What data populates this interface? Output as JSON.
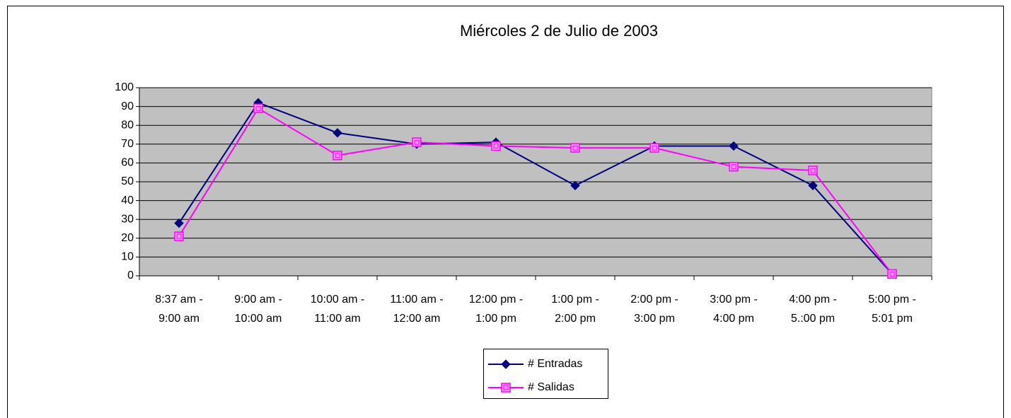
{
  "chart_data": {
    "type": "line",
    "title": "Miércoles 2 de Julio de 2003",
    "categories": [
      [
        "8:37 am -",
        "9:00 am"
      ],
      [
        "9:00 am -",
        "10:00 am"
      ],
      [
        "10:00 am -",
        "11:00 am"
      ],
      [
        "11:00 am -",
        "12:00 am"
      ],
      [
        "12:00 pm -",
        "1:00 pm"
      ],
      [
        "1:00 pm -",
        "2:00 pm"
      ],
      [
        "2:00 pm -",
        "3:00 pm"
      ],
      [
        "3:00 pm -",
        "4:00 pm"
      ],
      [
        "4:00 pm -",
        "5.:00 pm"
      ],
      [
        "5:00 pm -",
        "5:01 pm"
      ]
    ],
    "series": [
      {
        "name": "# Entradas",
        "color": "#000080",
        "marker": "diamond",
        "values": [
          28,
          92,
          76,
          70,
          71,
          48,
          69,
          69,
          48,
          1
        ]
      },
      {
        "name": "# Salidas",
        "color": "#ff00ff",
        "marker": "square",
        "values": [
          21,
          89,
          64,
          71,
          69,
          68,
          68,
          58,
          56,
          1
        ]
      }
    ],
    "ylim": [
      0,
      100
    ],
    "yticks": [
      0,
      10,
      20,
      30,
      40,
      50,
      60,
      70,
      80,
      90,
      100
    ],
    "grid": true,
    "plot_background": "#c0c0c0",
    "legend": "bottom"
  }
}
